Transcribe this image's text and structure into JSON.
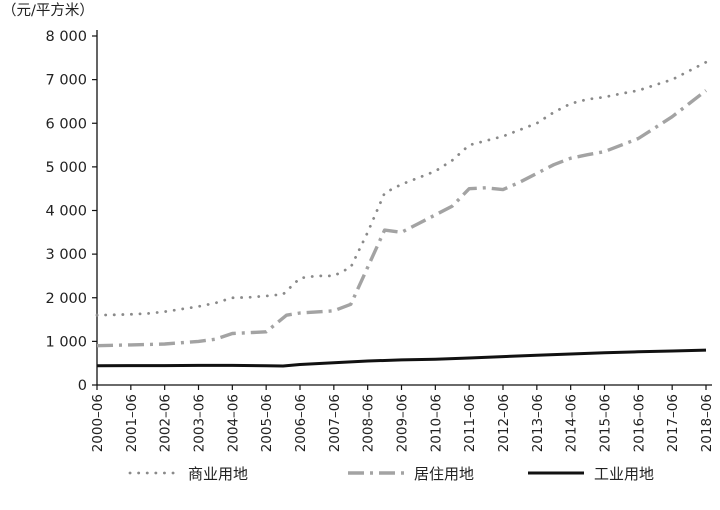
{
  "chart_data": {
    "type": "line",
    "ylabel": "（元/平方米）",
    "ylim": [
      0,
      8000
    ],
    "yticks": [
      0,
      1000,
      2000,
      3000,
      4000,
      5000,
      6000,
      7000,
      8000
    ],
    "ytick_labels": [
      "0",
      "1 000",
      "2 000",
      "3 000",
      "4 000",
      "5 000",
      "6 000",
      "7 000",
      "8 000"
    ],
    "x_labels": [
      "2000–06",
      "2001–06",
      "2002–06",
      "2003–06",
      "2004–06",
      "2005–06",
      "2006–06",
      "2007–06",
      "2008–06",
      "2009–06",
      "2010–06",
      "2011–06",
      "2012–06",
      "2013–06",
      "2014–06",
      "2015–06",
      "2016–06",
      "2017–06",
      "2018–06"
    ],
    "x_range": [
      0,
      18
    ],
    "grid": false,
    "legend_position": "bottom",
    "series": [
      {
        "name": "商业用地",
        "style": "dotted",
        "color": "#8a8a8a",
        "points": [
          [
            0,
            1600
          ],
          [
            0.5,
            1610
          ],
          [
            1,
            1620
          ],
          [
            1.5,
            1640
          ],
          [
            2,
            1680
          ],
          [
            2.5,
            1740
          ],
          [
            3,
            1800
          ],
          [
            3.5,
            1880
          ],
          [
            4,
            2000
          ],
          [
            4.5,
            2010
          ],
          [
            5,
            2040
          ],
          [
            5.5,
            2080
          ],
          [
            6,
            2450
          ],
          [
            6.5,
            2500
          ],
          [
            7,
            2500
          ],
          [
            7.5,
            2700
          ],
          [
            8,
            3500
          ],
          [
            8.5,
            4400
          ],
          [
            9,
            4600
          ],
          [
            9.5,
            4750
          ],
          [
            10,
            4900
          ],
          [
            10.5,
            5150
          ],
          [
            11,
            5500
          ],
          [
            11.5,
            5600
          ],
          [
            12,
            5700
          ],
          [
            12.5,
            5850
          ],
          [
            13,
            6000
          ],
          [
            13.5,
            6250
          ],
          [
            14,
            6450
          ],
          [
            14.5,
            6550
          ],
          [
            15,
            6600
          ],
          [
            15.5,
            6680
          ],
          [
            16,
            6750
          ],
          [
            16.5,
            6880
          ],
          [
            17,
            7000
          ],
          [
            17.5,
            7200
          ],
          [
            18,
            7400
          ]
        ]
      },
      {
        "name": "居住用地",
        "style": "dashdot",
        "color": "#a3a3a3",
        "points": [
          [
            0,
            900
          ],
          [
            1,
            920
          ],
          [
            2,
            940
          ],
          [
            3,
            1000
          ],
          [
            3.5,
            1050
          ],
          [
            4,
            1180
          ],
          [
            5,
            1220
          ],
          [
            5.6,
            1600
          ],
          [
            6,
            1650
          ],
          [
            7,
            1700
          ],
          [
            7.5,
            1850
          ],
          [
            8,
            2700
          ],
          [
            8.5,
            3550
          ],
          [
            9,
            3500
          ],
          [
            9.5,
            3700
          ],
          [
            10,
            3900
          ],
          [
            10.5,
            4100
          ],
          [
            11,
            4500
          ],
          [
            11.5,
            4520
          ],
          [
            12,
            4480
          ],
          [
            12.5,
            4650
          ],
          [
            13,
            4850
          ],
          [
            13.5,
            5050
          ],
          [
            14,
            5200
          ],
          [
            14.5,
            5280
          ],
          [
            15,
            5350
          ],
          [
            15.5,
            5500
          ],
          [
            16,
            5650
          ],
          [
            16.5,
            5900
          ],
          [
            17,
            6150
          ],
          [
            17.5,
            6450
          ],
          [
            18,
            6750
          ]
        ]
      },
      {
        "name": "工业用地",
        "style": "solid",
        "color": "#111111",
        "points": [
          [
            0,
            440
          ],
          [
            1,
            445
          ],
          [
            2,
            445
          ],
          [
            3,
            450
          ],
          [
            4,
            450
          ],
          [
            5,
            440
          ],
          [
            5.5,
            435
          ],
          [
            6,
            470
          ],
          [
            7,
            510
          ],
          [
            8,
            550
          ],
          [
            9,
            575
          ],
          [
            10,
            590
          ],
          [
            11,
            620
          ],
          [
            12,
            650
          ],
          [
            13,
            680
          ],
          [
            14,
            710
          ],
          [
            15,
            740
          ],
          [
            16,
            760
          ],
          [
            17,
            780
          ],
          [
            18,
            800
          ]
        ]
      }
    ]
  }
}
